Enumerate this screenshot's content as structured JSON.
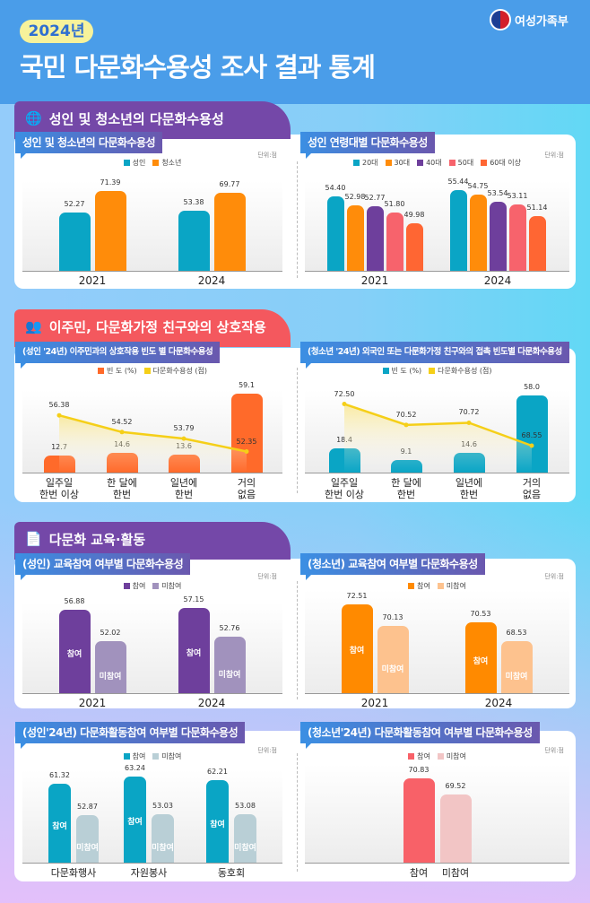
{
  "header": {
    "year_badge": "2024년",
    "title": "국민 다문화수용성 조사 결과 통계",
    "ministry": "여성가족부"
  },
  "sections": [
    {
      "title": "성인 및 청소년의 다문화수용성",
      "icon": "globe-search-icon",
      "color": "#7448a8"
    },
    {
      "title": "이주민, 다문화가정 친구와의 상호작용",
      "icon": "people-exchange-icon",
      "color": "#f4585e"
    },
    {
      "title": "다문화 교육·활동",
      "icon": "document-icon",
      "color": "#7448a8"
    }
  ],
  "chart_data": [
    {
      "type": "bar",
      "title": "성인 및 청소년의 다문화수용성",
      "unit": "단위:점",
      "categories": [
        "2021",
        "2024"
      ],
      "ylim": [
        0,
        80
      ],
      "series": [
        {
          "name": "성인",
          "color": "#0aa5c5",
          "values": [
            52.27,
            53.38
          ]
        },
        {
          "name": "청소년",
          "color": "#ff8c0a",
          "values": [
            71.39,
            69.77
          ]
        }
      ]
    },
    {
      "type": "bar",
      "title": "성인 연령대별 다문화수용성",
      "unit": "단위:점",
      "categories": [
        "2021",
        "2024"
      ],
      "ylim": [
        42,
        57
      ],
      "series": [
        {
          "name": "20대",
          "color": "#0aa5c5",
          "values": [
            54.4,
            55.44
          ]
        },
        {
          "name": "30대",
          "color": "#ff8c0a",
          "values": [
            52.98,
            54.75
          ]
        },
        {
          "name": "40대",
          "color": "#6e3f9c",
          "values": [
            52.77,
            53.54
          ]
        },
        {
          "name": "50대",
          "color": "#f7636c",
          "values": [
            51.8,
            53.11
          ]
        },
        {
          "name": "60대 이상",
          "color": "#ff6633",
          "values": [
            49.98,
            51.14
          ]
        }
      ]
    },
    {
      "type": "bar+line",
      "title": "(성인 '24년) 이주민과의 상호작용 빈도 별 다문화수용성",
      "categories": [
        "일주일\n한번 이상",
        "한 달에\n한번",
        "일년에\n한번",
        "거의\n없음"
      ],
      "ylim": [
        0,
        62
      ],
      "series": [
        {
          "name": "빈 도 (%)",
          "color": "#ff6a2a",
          "values": [
            12.7,
            14.6,
            13.6,
            59.1
          ]
        }
      ],
      "line": {
        "name": "다문화수용성 (점)",
        "color": "#f5cf18",
        "values": [
          56.38,
          54.52,
          53.79,
          52.35
        ],
        "ylim": [
          50,
          60
        ]
      }
    },
    {
      "type": "bar+line",
      "title": "(청소년 '24년) 외국인 또는 다문화가정 친구와의 접촉 빈도별 다문화수용성",
      "categories": [
        "일주일\n한번 이상",
        "한 달에\n한번",
        "일년에\n한번",
        "거의\n없음"
      ],
      "ylim": [
        0,
        62
      ],
      "series": [
        {
          "name": "빈 도 (%)",
          "color": "#0aa5c5",
          "values": [
            18.4,
            9.1,
            14.6,
            58.0
          ]
        }
      ],
      "line": {
        "name": "다문화수용성 (점)",
        "color": "#f5cf18",
        "values": [
          72.5,
          70.52,
          70.72,
          68.55
        ],
        "ylim": [
          66,
          74.5
        ]
      }
    },
    {
      "type": "bar",
      "title": "(성인) 교육참여 여부별 다문화수용성",
      "unit": "단위:점",
      "categories": [
        "2021",
        "2024"
      ],
      "ylim": [
        44,
        58
      ],
      "inner_labels": true,
      "series": [
        {
          "name": "참여",
          "color": "#6e3f9c",
          "values": [
            56.88,
            57.15
          ]
        },
        {
          "name": "미참여",
          "color": "#a192bd",
          "values": [
            52.02,
            52.76
          ]
        }
      ]
    },
    {
      "type": "bar",
      "title": "(청소년) 교육참여 여부별 다문화수용성",
      "unit": "단위:점",
      "categories": [
        "2021",
        "2024"
      ],
      "ylim": [
        63,
        74
      ],
      "inner_labels": true,
      "series": [
        {
          "name": "참여",
          "color": "#ff8a00",
          "values": [
            72.51,
            70.53
          ]
        },
        {
          "name": "미참여",
          "color": "#fdc28e",
          "values": [
            70.13,
            68.53
          ]
        }
      ]
    },
    {
      "type": "bar",
      "title": "(성인'24년) 다문화활동참여 여부별 다문화수용성",
      "unit": "단위:점",
      "categories": [
        "다문화행사",
        "자원봉사",
        "동호회"
      ],
      "ylim": [
        40,
        65
      ],
      "inner_labels": true,
      "series": [
        {
          "name": "참여",
          "color": "#0aa5c5",
          "values": [
            61.32,
            63.24,
            62.21
          ]
        },
        {
          "name": "미참여",
          "color": "#b9cfd6",
          "values": [
            52.87,
            53.03,
            53.08
          ]
        }
      ]
    },
    {
      "type": "bar",
      "title": "(청소년'24년) 다문화활동참여 여부별 다문화수용성",
      "unit": "단위:점",
      "categories": [
        "참여",
        "미참여"
      ],
      "ylim": [
        64,
        72
      ],
      "series": [
        {
          "name": "참여",
          "color": "#f86168",
          "values": [
            70.83,
            null
          ]
        },
        {
          "name": "미참여",
          "color": "#f2c5c5",
          "values": [
            null,
            69.52
          ]
        }
      ]
    }
  ]
}
